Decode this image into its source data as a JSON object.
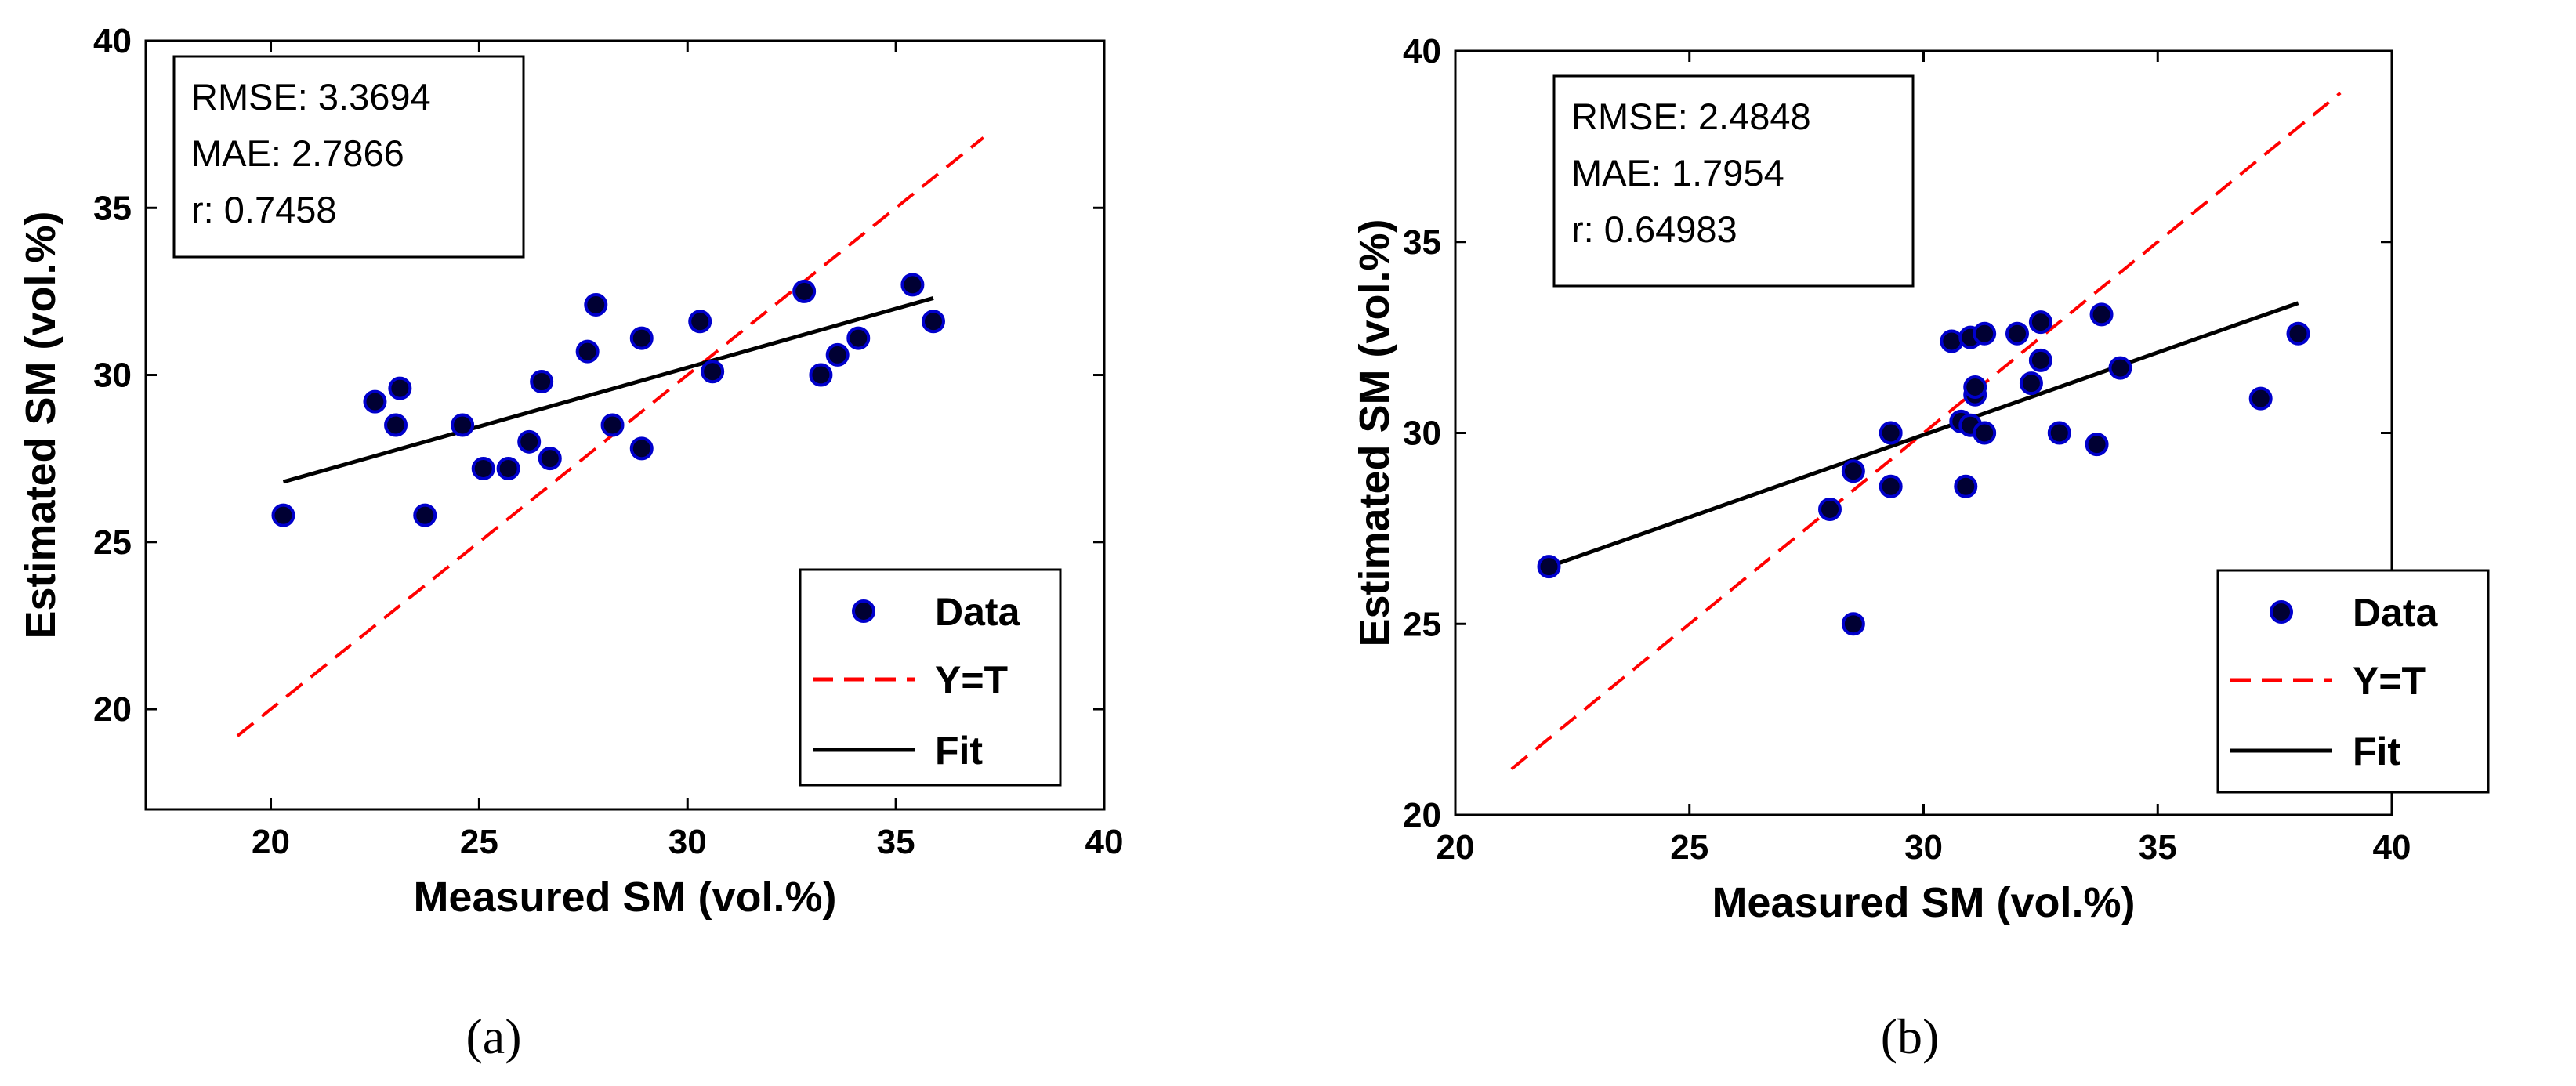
{
  "chart_data": [
    {
      "type": "scatter",
      "panel_label": "(a)",
      "xlabel": "Measured SM (vol.%)",
      "ylabel": "Estimated SM (vol.%)",
      "xlim": [
        17,
        40
      ],
      "ylim": [
        17,
        40
      ],
      "xticks": [
        20,
        25,
        30,
        35,
        40
      ],
      "yticks": [
        20,
        25,
        30,
        35,
        40
      ],
      "stats": [
        "RMSE: 3.3694",
        "MAE: 2.7866",
        "r: 0.7458"
      ],
      "legend": [
        "Data",
        "Y=T",
        "Fit"
      ],
      "legend_position": "bottom-right",
      "series": [
        {
          "name": "Data",
          "kind": "markers",
          "points": [
            [
              20.3,
              25.8
            ],
            [
              22.5,
              29.2
            ],
            [
              23.0,
              28.5
            ],
            [
              23.1,
              29.6
            ],
            [
              23.7,
              25.8
            ],
            [
              24.6,
              28.5
            ],
            [
              25.1,
              27.2
            ],
            [
              25.7,
              27.2
            ],
            [
              26.2,
              28.0
            ],
            [
              26.5,
              29.8
            ],
            [
              26.7,
              27.5
            ],
            [
              27.6,
              30.7
            ],
            [
              27.8,
              32.1
            ],
            [
              28.2,
              28.5
            ],
            [
              28.9,
              31.1
            ],
            [
              28.9,
              27.8
            ],
            [
              30.3,
              31.6
            ],
            [
              30.6,
              30.1
            ],
            [
              32.8,
              32.5
            ],
            [
              33.2,
              30.0
            ],
            [
              33.6,
              30.6
            ],
            [
              34.1,
              31.1
            ],
            [
              35.4,
              32.7
            ],
            [
              35.9,
              31.6
            ]
          ]
        },
        {
          "name": "Y=T",
          "kind": "line",
          "color": "#ff0000",
          "dashed": true,
          "x": [
            19.2,
            37.1
          ],
          "y": [
            19.2,
            37.1
          ]
        },
        {
          "name": "Fit",
          "kind": "line",
          "color": "#000000",
          "dashed": false,
          "x": [
            20.3,
            35.9
          ],
          "y": [
            26.8,
            32.3
          ]
        }
      ]
    },
    {
      "type": "scatter",
      "panel_label": "(b)",
      "xlabel": "Measured SM (vol.%)",
      "ylabel": "Estimated SM (vol.%)",
      "xlim": [
        20,
        40
      ],
      "ylim": [
        20,
        40
      ],
      "xticks": [
        20,
        25,
        30,
        35,
        40
      ],
      "yticks": [
        20,
        25,
        30,
        35,
        40
      ],
      "stats": [
        "RMSE: 2.4848",
        "MAE: 1.7954",
        "r: 0.64983"
      ],
      "legend": [
        "Data",
        "Y=T",
        "Fit"
      ],
      "legend_position": "bottom-right",
      "series": [
        {
          "name": "Data",
          "kind": "markers",
          "points": [
            [
              22.0,
              26.5
            ],
            [
              28.5,
              25.0
            ],
            [
              28.0,
              28.0
            ],
            [
              28.5,
              29.0
            ],
            [
              29.3,
              28.6
            ],
            [
              29.3,
              30.0
            ],
            [
              30.6,
              32.4
            ],
            [
              30.8,
              30.3
            ],
            [
              31.0,
              32.5
            ],
            [
              31.3,
              32.6
            ],
            [
              30.9,
              28.6
            ],
            [
              31.1,
              31.0
            ],
            [
              31.1,
              31.2
            ],
            [
              31.0,
              30.2
            ],
            [
              31.3,
              30.0
            ],
            [
              32.0,
              32.6
            ],
            [
              32.3,
              31.3
            ],
            [
              32.5,
              32.9
            ],
            [
              32.5,
              31.9
            ],
            [
              32.9,
              30.0
            ],
            [
              33.7,
              29.7
            ],
            [
              33.8,
              33.1
            ],
            [
              34.2,
              31.7
            ],
            [
              37.2,
              30.9
            ],
            [
              38.0,
              32.6
            ]
          ]
        },
        {
          "name": "Y=T",
          "kind": "line",
          "color": "#ff0000",
          "dashed": true,
          "x": [
            21.2,
            38.9
          ],
          "y": [
            21.2,
            38.9
          ]
        },
        {
          "name": "Fit",
          "kind": "line",
          "color": "#000000",
          "dashed": false,
          "x": [
            22.0,
            38.0
          ],
          "y": [
            26.5,
            33.4
          ]
        }
      ]
    }
  ]
}
